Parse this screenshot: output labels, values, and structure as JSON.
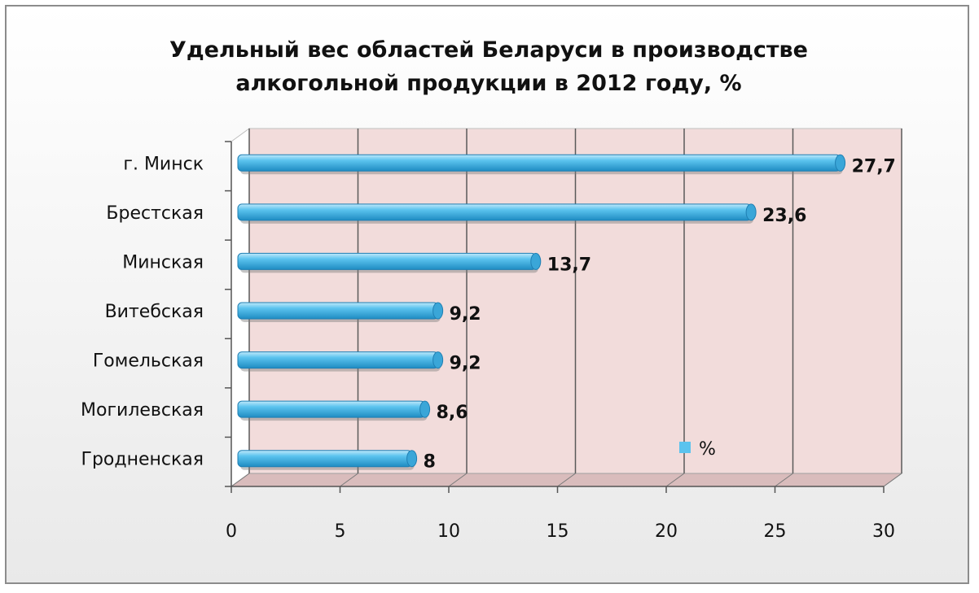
{
  "chart_data": {
    "type": "bar",
    "orientation": "horizontal",
    "title_lines": [
      "Удельный вес областей Беларуси в производстве",
      "алкогольной продукции в 2012  году, %"
    ],
    "categories": [
      "г. Минск",
      "Брестская",
      "Минская",
      "Витебская",
      "Гомельская",
      "Могилевская",
      "Гродненская"
    ],
    "series": [
      {
        "name": "%",
        "values": [
          27.7,
          23.6,
          13.7,
          9.2,
          9.2,
          8.6,
          8
        ],
        "labels": [
          "27,7",
          "23,6",
          "13,7",
          "9,2",
          "9,2",
          "8,6",
          "8"
        ]
      }
    ],
    "xlim": [
      0,
      30
    ],
    "x_ticks": [
      0,
      5,
      10,
      15,
      20,
      25,
      30
    ],
    "grid": true,
    "legend_position": "inside-bottom-right",
    "colors": {
      "bar": "#5bc3ee",
      "bar_dark": "#1f7fb3",
      "plot_wall": "#f2dcdb",
      "floor": "#d9bcbc",
      "legend_marker": "#5bc3ee"
    }
  }
}
